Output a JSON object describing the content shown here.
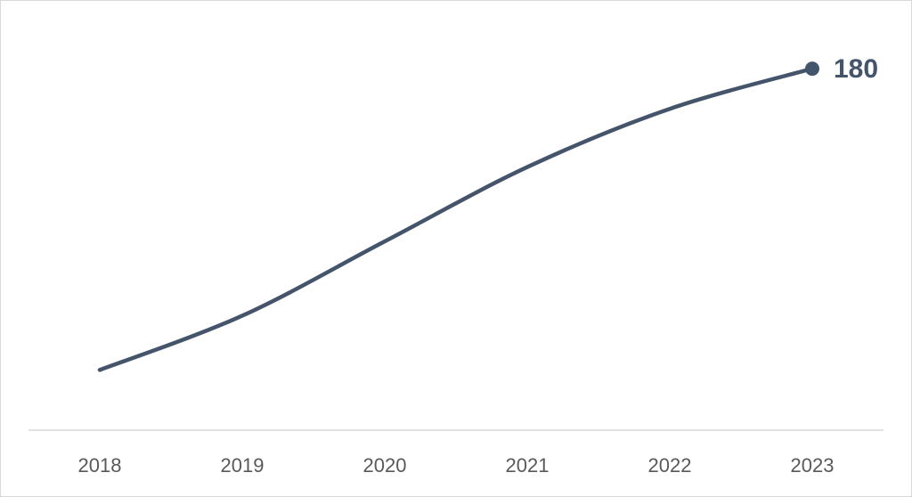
{
  "chart_data": {
    "type": "line",
    "categories": [
      "2018",
      "2019",
      "2020",
      "2021",
      "2022",
      "2023"
    ],
    "series": [
      {
        "color": "#44546a",
        "values": [
          30,
          57,
          94,
          131,
          160,
          180
        ]
      }
    ],
    "ylim": [
      0,
      200
    ],
    "smooth": true,
    "data_labels": "last"
  }
}
